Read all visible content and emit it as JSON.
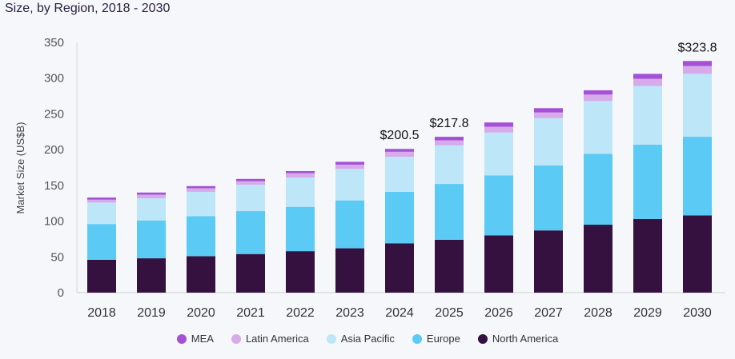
{
  "chart_data": {
    "type": "bar",
    "stacked": true,
    "title": "Size, by Region, 2018 - 2030",
    "ylabel": "Market Size (US$B)",
    "ylim": [
      0,
      350
    ],
    "yticks": [
      0,
      50,
      100,
      150,
      200,
      250,
      300,
      350
    ],
    "grid": false,
    "legend_position": "bottom",
    "categories": [
      "2018",
      "2019",
      "2020",
      "2021",
      "2022",
      "2023",
      "2024",
      "2025",
      "2026",
      "2027",
      "2028",
      "2029",
      "2030"
    ],
    "series": [
      {
        "name": "North America",
        "color": "#34113f",
        "values": [
          46,
          48,
          51,
          54,
          58,
          62,
          69,
          74,
          80,
          87,
          95,
          103,
          108
        ]
      },
      {
        "name": "Europe",
        "color": "#5bcaf5",
        "values": [
          50,
          53,
          56,
          60,
          62,
          67,
          72,
          78,
          84,
          91,
          99,
          104,
          110
        ]
      },
      {
        "name": "Asia Pacific",
        "color": "#bde6f8",
        "values": [
          30,
          31,
          34,
          37,
          41,
          44,
          49,
          54,
          60,
          66,
          74,
          82,
          88
        ]
      },
      {
        "name": "Latin America",
        "color": "#d7aaea",
        "values": [
          4,
          5,
          5,
          5,
          6,
          6,
          7,
          7,
          8,
          8,
          9,
          10,
          11
        ]
      },
      {
        "name": "MEA",
        "color": "#a451d6",
        "values": [
          3,
          3,
          3,
          3,
          3,
          4,
          4,
          5,
          6,
          6,
          6,
          7,
          7
        ]
      }
    ],
    "data_labels": [
      {
        "category": "2024",
        "text": "$200.5"
      },
      {
        "category": "2025",
        "text": "$217.8"
      },
      {
        "category": "2030",
        "text": "$323.8"
      }
    ]
  },
  "legend": {
    "items": [
      {
        "name": "MEA",
        "color": "#a451d6"
      },
      {
        "name": "Latin America",
        "color": "#d7aaea"
      },
      {
        "name": "Asia Pacific",
        "color": "#bde6f8"
      },
      {
        "name": "Europe",
        "color": "#5bcaf5"
      },
      {
        "name": "North America",
        "color": "#34113f"
      }
    ]
  }
}
